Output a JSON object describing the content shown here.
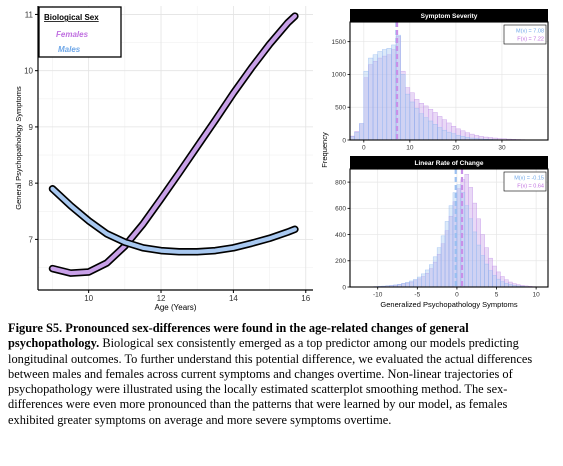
{
  "chart_data": [
    {
      "type": "line",
      "xlabel": "Age (Years)",
      "ylabel": "General Psychopathology Symptoms",
      "xlim": [
        8.6,
        16.2
      ],
      "ylim": [
        6.1,
        11.15
      ],
      "xticks": [
        10,
        12,
        14,
        16
      ],
      "yticks": [
        7,
        8,
        9,
        10,
        11
      ],
      "grid": true,
      "legend": {
        "title": "Biological Sex",
        "position": "top-left"
      },
      "series": [
        {
          "name": "Females",
          "color": "#c8a0e8",
          "x": [
            9.0,
            9.5,
            10.0,
            10.5,
            11.0,
            11.5,
            12.0,
            12.5,
            13.0,
            13.5,
            14.0,
            14.5,
            15.0,
            15.5,
            15.7
          ],
          "y": [
            6.48,
            6.4,
            6.42,
            6.58,
            6.88,
            7.27,
            7.72,
            8.18,
            8.65,
            9.12,
            9.6,
            10.05,
            10.47,
            10.85,
            10.97
          ]
        },
        {
          "name": "Males",
          "color": "#a8c8f0",
          "x": [
            9.0,
            9.5,
            10.0,
            10.5,
            11.0,
            11.5,
            12.0,
            12.5,
            13.0,
            13.5,
            14.0,
            14.5,
            15.0,
            15.5,
            15.7
          ],
          "y": [
            7.9,
            7.6,
            7.33,
            7.1,
            6.95,
            6.85,
            6.8,
            6.78,
            6.78,
            6.8,
            6.85,
            6.93,
            7.02,
            7.13,
            7.18
          ]
        }
      ]
    },
    {
      "type": "bar",
      "title": "Symptom Severity",
      "xlabel": "",
      "ylabel": "Frequency",
      "xlim": [
        -3,
        40
      ],
      "ylim": [
        0,
        1800
      ],
      "xticks": [
        0,
        10,
        20,
        30
      ],
      "yticks": [
        0,
        500,
        1000,
        1500
      ],
      "bin_width": 1,
      "bin_starts": [
        -3,
        -2,
        -1,
        0,
        1,
        2,
        3,
        4,
        5,
        6,
        7,
        8,
        9,
        10,
        11,
        12,
        13,
        14,
        15,
        16,
        17,
        18,
        19,
        20,
        21,
        22,
        23,
        24,
        25,
        26,
        27,
        28,
        29,
        30,
        31,
        32,
        33,
        34,
        35,
        36,
        37,
        38
      ],
      "series": [
        {
          "name": "Females",
          "values": [
            60,
            130,
            250,
            950,
            1150,
            1200,
            1250,
            1280,
            1300,
            1380,
            1580,
            1050,
            800,
            720,
            620,
            560,
            520,
            470,
            420,
            360,
            310,
            260,
            210,
            170,
            140,
            110,
            90,
            70,
            55,
            45,
            38,
            30,
            22,
            18,
            14,
            10,
            8,
            6,
            4,
            3,
            2,
            1
          ]
        },
        {
          "name": "Males",
          "values": [
            50,
            120,
            250,
            1050,
            1250,
            1300,
            1350,
            1380,
            1400,
            1450,
            1600,
            1000,
            700,
            580,
            480,
            400,
            340,
            290,
            240,
            190,
            150,
            120,
            95,
            70,
            55,
            40,
            30,
            22,
            16,
            12,
            9,
            7,
            5,
            4,
            3,
            2,
            1,
            1,
            1,
            0,
            0,
            0
          ]
        }
      ],
      "means": {
        "M(x)": 7.08,
        "F(x)": 7.22
      },
      "mean_labels": [
        "M(x) = 7.08",
        "F(x) = 7.22"
      ]
    },
    {
      "type": "bar",
      "title": "Linear Rate of Change",
      "xlabel": "Generalized Psychopathology Symptoms",
      "ylabel": "Frequency",
      "xlim": [
        -13.5,
        11.5
      ],
      "ylim": [
        0,
        900
      ],
      "xticks": [
        -10,
        -5,
        0,
        5,
        10
      ],
      "yticks": [
        0,
        200,
        400,
        600,
        800
      ],
      "bin_width": 0.5,
      "bin_starts": [
        -11,
        -10.5,
        -10,
        -9.5,
        -9,
        -8.5,
        -8,
        -7.5,
        -7,
        -6.5,
        -6,
        -5.5,
        -5,
        -4.5,
        -4,
        -3.5,
        -3,
        -2.5,
        -2,
        -1.5,
        -1,
        -0.5,
        0,
        0.5,
        1,
        1.5,
        2,
        2.5,
        3,
        3.5,
        4,
        4.5,
        5,
        5.5,
        6,
        6.5,
        7,
        7.5,
        8,
        8.5,
        9,
        9.5,
        10
      ],
      "series": [
        {
          "name": "Females",
          "values": [
            2,
            3,
            4,
            6,
            8,
            10,
            14,
            18,
            24,
            30,
            38,
            48,
            62,
            80,
            105,
            140,
            190,
            250,
            330,
            430,
            540,
            650,
            750,
            820,
            860,
            760,
            640,
            520,
            400,
            300,
            220,
            160,
            115,
            80,
            55,
            38,
            26,
            18,
            12,
            8,
            5,
            3,
            2
          ]
        },
        {
          "name": "Males",
          "values": [
            2,
            3,
            5,
            7,
            9,
            12,
            16,
            21,
            28,
            36,
            46,
            58,
            76,
            100,
            130,
            170,
            230,
            300,
            390,
            500,
            620,
            720,
            780,
            720,
            620,
            520,
            420,
            320,
            240,
            175,
            125,
            88,
            60,
            40,
            27,
            18,
            12,
            8,
            5,
            3,
            2,
            1,
            1
          ]
        }
      ],
      "means": {
        "M(x)": -0.15,
        "F(x)": 0.64
      },
      "mean_labels": [
        "M(x) = -0.15",
        "F(x) = 0.64"
      ]
    }
  ],
  "colors": {
    "females": "#c8a0e8",
    "males": "#a8c8f0",
    "females_text": "#c070e0",
    "males_text": "#70a8e8"
  },
  "caption": {
    "bold": "Figure S5. Pronounced sex-differences were found in the age-related changes of general psychopathology.",
    "body": " Biological sex consistently emerged as a top predictor among our models predicting longitudinal outcomes. To further understand this potential difference, we evaluated the actual differences between males and females across current symptoms and changes overtime. Non-linear trajectories of psychopathology were illustrated using the locally estimated scatterplot smoothing method. The sex-differences were even more pronounced than the patterns that were learned by our model, as females exhibited greater symptoms on average and more severe symptoms overtime."
  }
}
